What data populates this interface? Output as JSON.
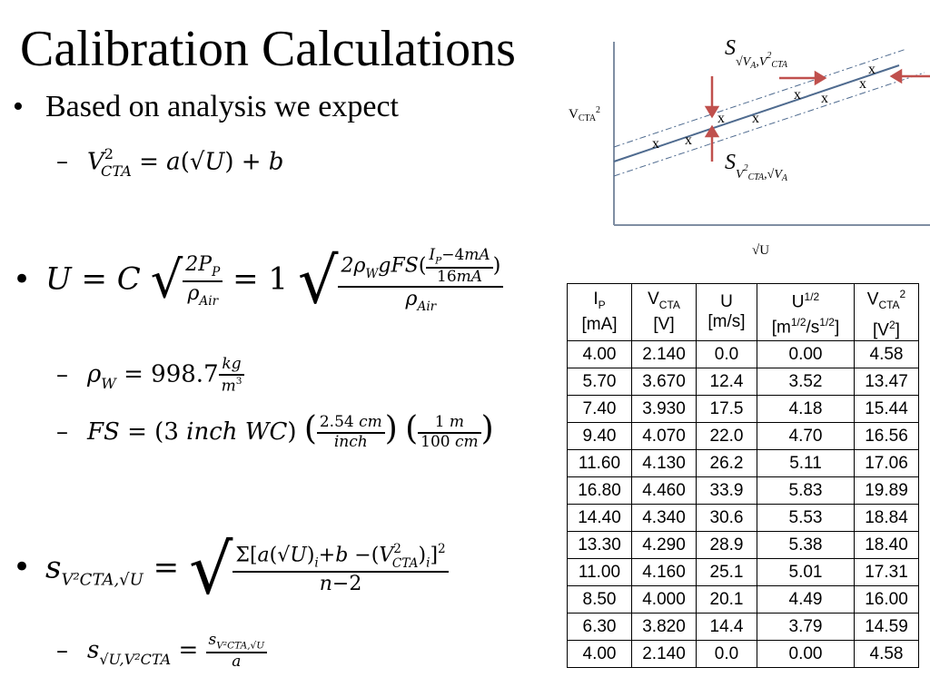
{
  "slide": {
    "title": "Calibration Calculations",
    "bullet1": "Based on analysis we expect",
    "bullet1_sub": "V_CTA^2 = a(√U) + b",
    "bullet2": "U = C √(2P_P / ρ_Air) = 1 √(2ρ_W g FS((I_P − 4mA)/16mA) / ρ_Air)",
    "bullet2_sub1": "ρ_W = 998.7 kg/m^3",
    "bullet2_sub2": "FS = (3 inch WC)(2.54 cm / inch)(1 m / 100 cm)",
    "bullet3": "s_{V_CTA^2,√U} = √( Σ[a(√U)_i + b − (V_CTA^2)_i]^2 / (n−2) )",
    "bullet3_sub": "s_{√U,V_CTA^2} = s_{V_CTA^2,√U} / a"
  },
  "diagram": {
    "y_axis_label": "VCTA2",
    "x_axis_label": "√U",
    "top_label": "S√VA,V2CTA",
    "bottom_label": "SV2CTA,√VA",
    "marker": "x"
  },
  "table": {
    "headers": [
      {
        "main": "I",
        "sub": "P",
        "sup": "",
        "unit": "[mA]"
      },
      {
        "main": "V",
        "sub": "CTA",
        "sup": "",
        "unit": "[V]"
      },
      {
        "main": "U",
        "sub": "",
        "sup": "",
        "unit": "[m/s]"
      },
      {
        "main": "U",
        "sub": "",
        "sup": "1/2",
        "unit": "[m1/2/s1/2]"
      },
      {
        "main": "V",
        "sub": "CTA",
        "sup": "2",
        "unit": "[V2]"
      }
    ],
    "rows": [
      [
        "4.00",
        "2.140",
        "0.0",
        "0.00",
        "4.58"
      ],
      [
        "5.70",
        "3.670",
        "12.4",
        "3.52",
        "13.47"
      ],
      [
        "7.40",
        "3.930",
        "17.5",
        "4.18",
        "15.44"
      ],
      [
        "9.40",
        "4.070",
        "22.0",
        "4.70",
        "16.56"
      ],
      [
        "11.60",
        "4.130",
        "26.2",
        "5.11",
        "17.06"
      ],
      [
        "16.80",
        "4.460",
        "33.9",
        "5.83",
        "19.89"
      ],
      [
        "14.40",
        "4.340",
        "30.6",
        "5.53",
        "18.84"
      ],
      [
        "13.30",
        "4.290",
        "28.9",
        "5.38",
        "18.40"
      ],
      [
        "11.00",
        "4.160",
        "25.1",
        "5.01",
        "17.31"
      ],
      [
        "8.50",
        "4.000",
        "20.1",
        "4.49",
        "16.00"
      ],
      [
        "6.30",
        "3.820",
        "14.4",
        "3.79",
        "14.59"
      ],
      [
        "4.00",
        "2.140",
        "0.0",
        "0.00",
        "4.58"
      ]
    ]
  },
  "colors": {
    "arrow": "#c0504d",
    "fit_line": "#4f6b8f"
  }
}
